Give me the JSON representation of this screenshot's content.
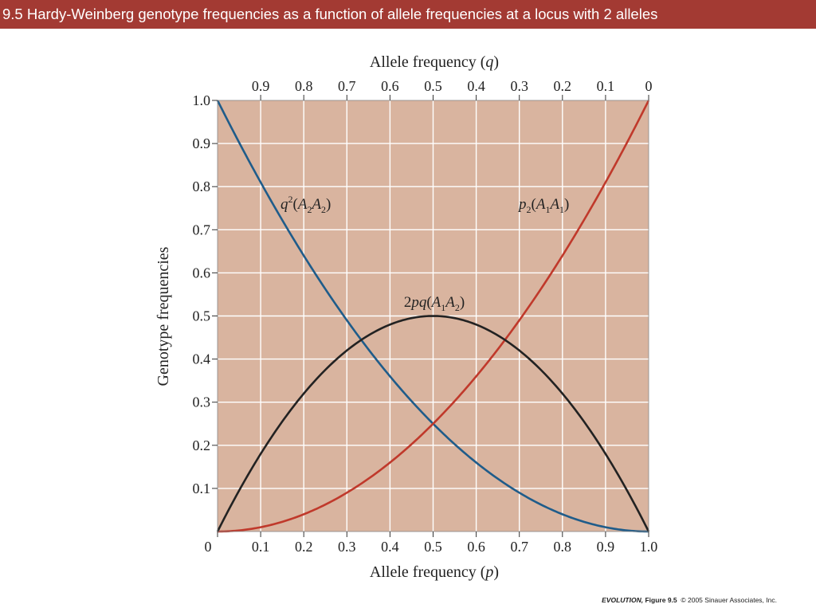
{
  "slide": {
    "title": "9.5  Hardy-Weinberg genotype frequencies as a function of allele frequencies at a locus with 2 alleles",
    "credit_book": "EVOLUTION,",
    "credit_figure": "Figure 9.5",
    "credit_rest": "© 2005 Sinauer Associates, Inc."
  },
  "colors": {
    "title_bar": "#a33a33",
    "plot_background": "#d9b49f",
    "grid": "#ffffff",
    "q2_curve": "#1f5c8a",
    "p2_curve": "#c0392b",
    "pq2_curve": "#222222"
  },
  "chart_data": {
    "type": "line",
    "xlabel_prefix": "Allele frequency (",
    "xlabel_var": "p",
    "xlabel_suffix": ")",
    "top_xlabel_prefix": "Allele frequency (",
    "top_xlabel_var": "q",
    "top_xlabel_suffix": ")",
    "ylabel": "Genotype frequencies",
    "xlim": [
      0,
      1
    ],
    "ylim": [
      0,
      1
    ],
    "x_ticks": [
      "0",
      "0.1",
      "0.2",
      "0.3",
      "0.4",
      "0.5",
      "0.6",
      "0.7",
      "0.8",
      "0.9",
      "1.0"
    ],
    "top_x_ticks": [
      "0.9",
      "0.8",
      "0.7",
      "0.6",
      "0.5",
      "0.4",
      "0.3",
      "0.2",
      "0.1",
      "0"
    ],
    "y_ticks": [
      "0.1",
      "0.2",
      "0.3",
      "0.4",
      "0.5",
      "0.6",
      "0.7",
      "0.8",
      "0.9",
      "1.0"
    ],
    "grid": true,
    "x": [
      0,
      0.1,
      0.2,
      0.3,
      0.4,
      0.5,
      0.6,
      0.7,
      0.8,
      0.9,
      1.0
    ],
    "series": [
      {
        "key": "q2",
        "values": [
          1.0,
          0.81,
          0.64,
          0.49,
          0.36,
          0.25,
          0.16,
          0.09,
          0.04,
          0.01,
          0.0
        ],
        "label": {
          "base": "q",
          "sup": "2",
          "open": "(",
          "g1": "A",
          "s1": "2",
          "g2": "A",
          "s2": "2",
          "close": ")"
        }
      },
      {
        "key": "p2",
        "values": [
          0.0,
          0.01,
          0.04,
          0.09,
          0.16,
          0.25,
          0.36,
          0.49,
          0.64,
          0.81,
          1.0
        ],
        "label": {
          "base": "p",
          "sub": "2",
          "open": "(",
          "g1": "A",
          "s1": "1",
          "g2": "A",
          "s2": "1",
          "close": ")"
        }
      },
      {
        "key": "pq2",
        "values": [
          0.0,
          0.18,
          0.32,
          0.42,
          0.48,
          0.5,
          0.48,
          0.42,
          0.32,
          0.18,
          0.0
        ],
        "label": {
          "lead": "2",
          "base": "pq",
          "open": "(",
          "g1": "A",
          "s1": "1",
          "g2": "A",
          "s2": "2",
          "close": ")"
        }
      }
    ]
  }
}
